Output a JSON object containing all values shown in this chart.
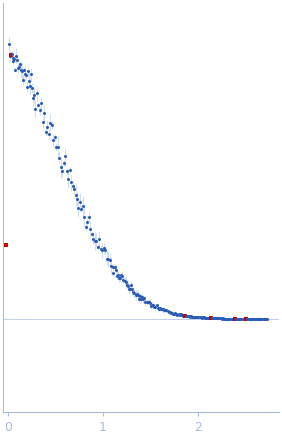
{
  "title": "",
  "xlabel": "",
  "ylabel": "",
  "xlim": [
    -0.05,
    2.85
  ],
  "x_ticks": [
    0,
    1,
    2
  ],
  "background_color": "#ffffff",
  "plot_color": "#2b5db8",
  "error_color": "#b8cce8",
  "outlier_color": "#cc0000",
  "spine_color": "#a8bce0",
  "tick_color": "#a8bce0",
  "label_color": "#a8bce0",
  "n_points": 220,
  "seed": 7
}
